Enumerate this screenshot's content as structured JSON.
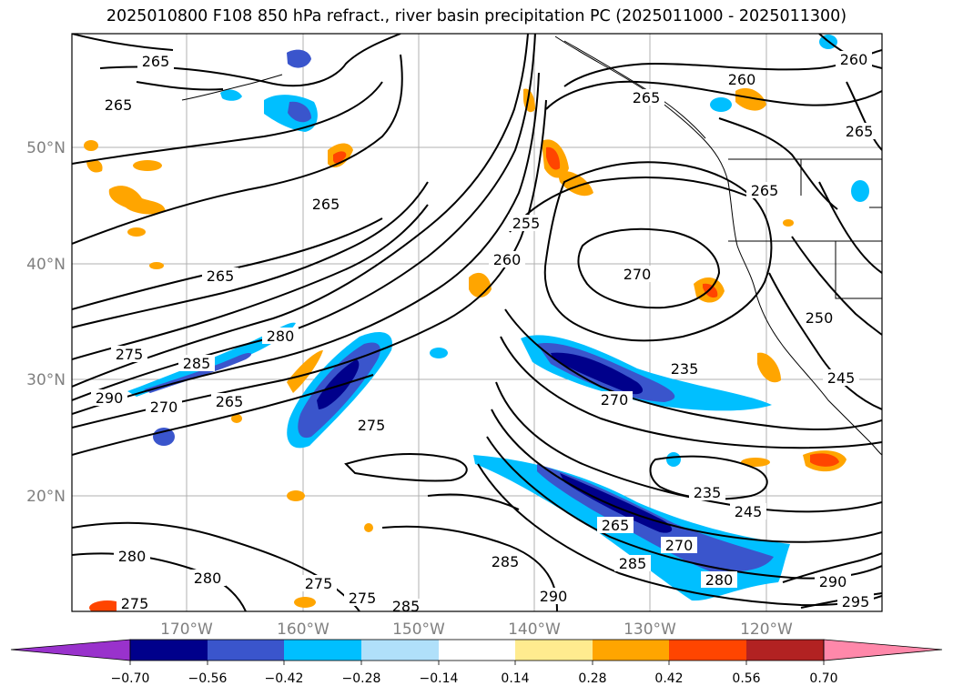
{
  "title": "2025010800 F108 850 hPa refract., river basin precipitation PC (2025011000 - 2025011300)",
  "map": {
    "lat_labels": [
      "20°N",
      "30°N",
      "40°N",
      "50°N"
    ],
    "lon_labels": [
      "170°W",
      "160°W",
      "150°W",
      "140°W",
      "130°W",
      "120°W"
    ],
    "contour_labels": [
      "265",
      "265",
      "265",
      "265",
      "265",
      "275",
      "285",
      "280",
      "270",
      "290",
      "265",
      "275",
      "260",
      "255",
      "270",
      "235",
      "235",
      "245",
      "265",
      "270",
      "285",
      "280",
      "260",
      "265",
      "250",
      "245",
      "260",
      "265",
      "290",
      "285",
      "275",
      "280",
      "285",
      "280",
      "275",
      "275",
      "295",
      "290",
      "270"
    ],
    "colors": {
      "neg_extend": "#9932CC",
      "neg_070": "#00008B",
      "neg_056": "#3A55CC",
      "neg_042": "#00BFFF",
      "neg_028": "#B0E0FA",
      "neutral": "#FFFFFF",
      "pos_014": "#FFEB8F",
      "pos_028": "#FFA500",
      "pos_042": "#FF4500",
      "pos_056": "#B22222",
      "pos_extend": "#FF88AA"
    }
  },
  "colorbar": {
    "ticks": [
      "−0.70",
      "−0.56",
      "−0.42",
      "−0.28",
      "−0.14",
      "0.14",
      "0.28",
      "0.42",
      "0.56",
      "0.70"
    ]
  }
}
